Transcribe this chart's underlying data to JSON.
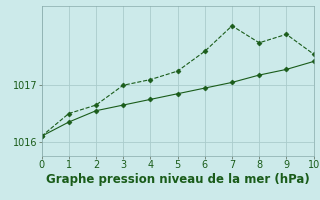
{
  "title": "Graphe pression niveau de la mer (hPa)",
  "bg_color": "#cceaea",
  "line1_x": [
    0,
    1,
    2,
    3,
    4,
    5,
    6,
    7,
    8,
    9,
    10
  ],
  "line1_y": [
    1016.1,
    1016.5,
    1016.65,
    1017.0,
    1017.1,
    1017.25,
    1017.6,
    1018.05,
    1017.75,
    1017.9,
    1017.55
  ],
  "line2_x": [
    0,
    1,
    2,
    3,
    4,
    5,
    6,
    7,
    8,
    9,
    10
  ],
  "line2_y": [
    1016.1,
    1016.35,
    1016.55,
    1016.65,
    1016.75,
    1016.85,
    1016.95,
    1017.05,
    1017.18,
    1017.28,
    1017.42
  ],
  "line1_color": "#1a5c1a",
  "line2_color": "#1a5c1a",
  "marker_style": "D",
  "marker_size": 2.5,
  "xlim": [
    0,
    10
  ],
  "ylim": [
    1015.75,
    1018.4
  ],
  "yticks": [
    1016,
    1017
  ],
  "xticks": [
    0,
    1,
    2,
    3,
    4,
    5,
    6,
    7,
    8,
    9,
    10
  ],
  "grid_color": "#aacccc",
  "title_fontsize": 8.5,
  "tick_fontsize": 7,
  "title_color": "#1a5c1a"
}
